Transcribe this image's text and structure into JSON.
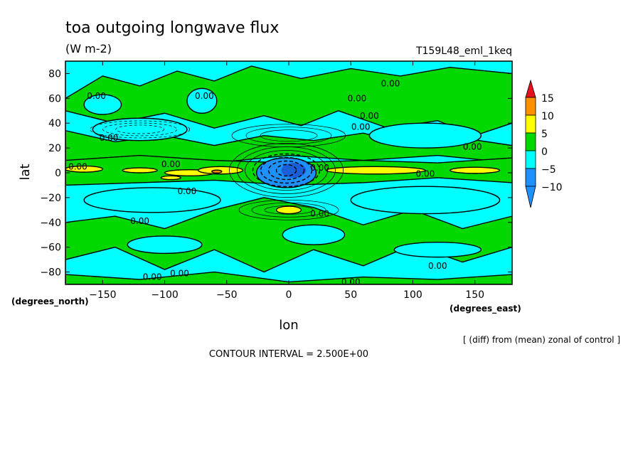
{
  "header": {
    "title": "toa outgoing longwave flux",
    "units": "(W m-2)",
    "run_label": "T159L48_eml_1keq"
  },
  "footer": {
    "diff_note": "[ (diff) from (mean) zonal of control ]",
    "contour_interval": "CONTOUR INTERVAL = 2.500E+00"
  },
  "chart_data": {
    "type": "heatmap",
    "title": "toa outgoing longwave flux",
    "subtitle": "(W m-2)",
    "xlabel": "lon",
    "ylabel": "lat",
    "x_units": "(degrees_east)",
    "y_units": "(degrees_north)",
    "xlim": [
      -180,
      180
    ],
    "ylim": [
      -90,
      90
    ],
    "x_ticks": [
      -150,
      -100,
      -50,
      0,
      50,
      100,
      150
    ],
    "y_ticks": [
      80,
      60,
      40,
      20,
      0,
      -20,
      -40,
      -60,
      -80
    ],
    "contour_interval": 2.5,
    "colorbar": {
      "levels": [
        15,
        10,
        5,
        0,
        -5,
        -10
      ],
      "bins": [
        {
          "range": [
            15,
            null
          ],
          "color": "#e8101a"
        },
        {
          "range": [
            10,
            15
          ],
          "color": "#ff9000"
        },
        {
          "range": [
            5,
            10
          ],
          "color": "#ffff00"
        },
        {
          "range": [
            0,
            5
          ],
          "color": "#00d800"
        },
        {
          "range": [
            -5,
            0
          ],
          "color": "#00ffff"
        },
        {
          "range": [
            -10,
            -5
          ],
          "color": "#1e90ff"
        },
        {
          "range": [
            null,
            -10
          ],
          "color": "#1e90ff"
        }
      ]
    },
    "contour_labels": [
      {
        "text": "0.00",
        "lon": -155,
        "lat": 62
      },
      {
        "text": "0.00",
        "lon": -145,
        "lat": 28
      },
      {
        "text": "0.00",
        "lon": -170,
        "lat": 5
      },
      {
        "text": "0.00",
        "lon": -95,
        "lat": 7
      },
      {
        "text": "0.00",
        "lon": -82,
        "lat": -15
      },
      {
        "text": "0.00",
        "lon": -120,
        "lat": -39
      },
      {
        "text": "0.00",
        "lon": -110,
        "lat": -84
      },
      {
        "text": "0.00",
        "lon": -88,
        "lat": -81
      },
      {
        "text": "0.00",
        "lon": -68,
        "lat": 62
      },
      {
        "text": "0.00",
        "lon": 55,
        "lat": 60
      },
      {
        "text": "0.00",
        "lon": 65,
        "lat": 46
      },
      {
        "text": "0.00",
        "lon": 58,
        "lat": 37
      },
      {
        "text": "0.00",
        "lon": 82,
        "lat": 72
      },
      {
        "text": "0.00",
        "lon": 148,
        "lat": 21
      },
      {
        "text": "0.00",
        "lon": 110,
        "lat": -1
      },
      {
        "text": "0.00",
        "lon": 25,
        "lat": 4
      },
      {
        "text": "0.00",
        "lon": 25,
        "lat": -33
      },
      {
        "text": "0.00",
        "lon": 120,
        "lat": -75
      },
      {
        "text": "0.00",
        "lon": 50,
        "lat": -88
      }
    ]
  }
}
